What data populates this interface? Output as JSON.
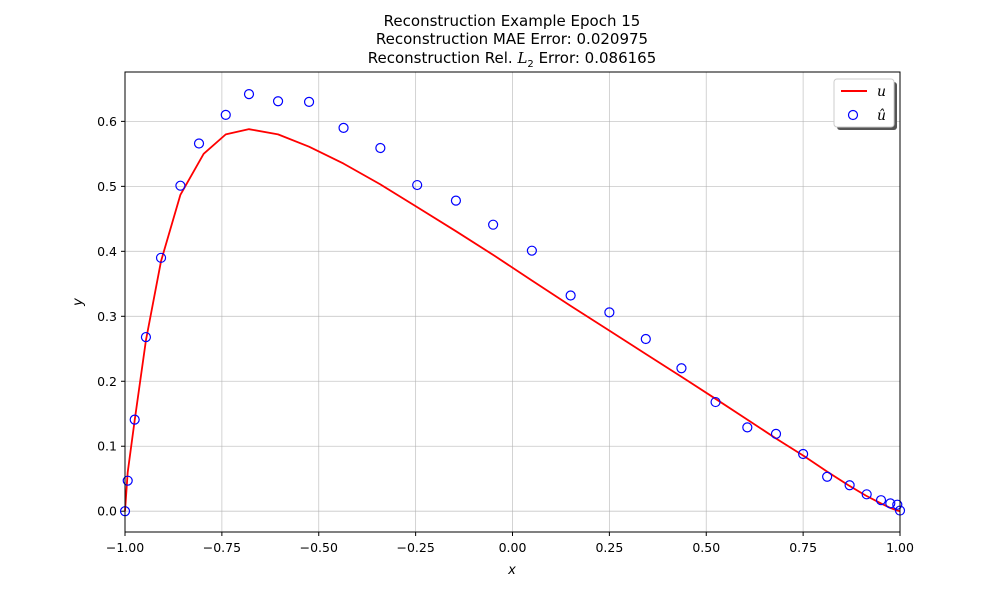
{
  "chart_data": {
    "type": "line",
    "title_lines": [
      "Reconstruction Example Epoch 15",
      "Reconstruction MAE Error: 0.020975",
      "Reconstruction Rel. L2 Error: 0.086165"
    ],
    "xlabel": "x",
    "ylabel": "y",
    "xlim": [
      -1.0,
      1.0
    ],
    "ylim": [
      -0.032,
      0.676
    ],
    "xticks": [
      -1.0,
      -0.75,
      -0.5,
      -0.25,
      0.0,
      0.25,
      0.5,
      0.75,
      1.0
    ],
    "xtick_labels": [
      "−1.00",
      "−0.75",
      "−0.50",
      "−0.25",
      "0.00",
      "0.25",
      "0.50",
      "0.75",
      "1.00"
    ],
    "yticks": [
      0.0,
      0.1,
      0.2,
      0.3,
      0.4,
      0.5,
      0.6
    ],
    "ytick_labels": [
      "0.0",
      "0.1",
      "0.2",
      "0.3",
      "0.4",
      "0.5",
      "0.6"
    ],
    "grid": true,
    "legend_position": "top-right",
    "series": [
      {
        "name": "u",
        "style": "line",
        "color": "#ff0000",
        "x": [
          -1.0,
          -0.993,
          -0.975,
          -0.946,
          -0.907,
          -0.857,
          -0.797,
          -0.74,
          -0.68,
          -0.605,
          -0.525,
          -0.436,
          -0.341,
          -0.246,
          -0.146,
          -0.046,
          0.05,
          0.15,
          0.25,
          0.344,
          0.436,
          0.524,
          0.606,
          0.68,
          0.752,
          0.812,
          0.867,
          0.912,
          0.951,
          0.975,
          0.993,
          1.0
        ],
        "y": [
          0.0,
          0.06,
          0.14,
          0.263,
          0.385,
          0.487,
          0.55,
          0.58,
          0.588,
          0.58,
          0.561,
          0.535,
          0.503,
          0.468,
          0.431,
          0.393,
          0.355,
          0.316,
          0.278,
          0.242,
          0.207,
          0.173,
          0.141,
          0.112,
          0.085,
          0.061,
          0.04,
          0.024,
          0.012,
          0.005,
          0.001,
          0.0
        ]
      },
      {
        "name": "û",
        "style": "markers",
        "color": "#0000ff",
        "x": [
          -1.0,
          -0.993,
          -0.975,
          -0.946,
          -0.907,
          -0.857,
          -0.809,
          -0.74,
          -0.68,
          -0.605,
          -0.525,
          -0.436,
          -0.341,
          -0.246,
          -0.146,
          -0.05,
          0.05,
          0.15,
          0.25,
          0.344,
          0.436,
          0.524,
          0.606,
          0.68,
          0.75,
          0.812,
          0.87,
          0.914,
          0.951,
          0.975,
          0.993,
          1.0
        ],
        "y": [
          0.0,
          0.047,
          0.141,
          0.268,
          0.39,
          0.501,
          0.566,
          0.61,
          0.642,
          0.631,
          0.63,
          0.59,
          0.559,
          0.502,
          0.478,
          0.441,
          0.401,
          0.332,
          0.306,
          0.265,
          0.22,
          0.168,
          0.129,
          0.119,
          0.088,
          0.053,
          0.04,
          0.026,
          0.017,
          0.012,
          0.01,
          0.001
        ]
      }
    ]
  }
}
